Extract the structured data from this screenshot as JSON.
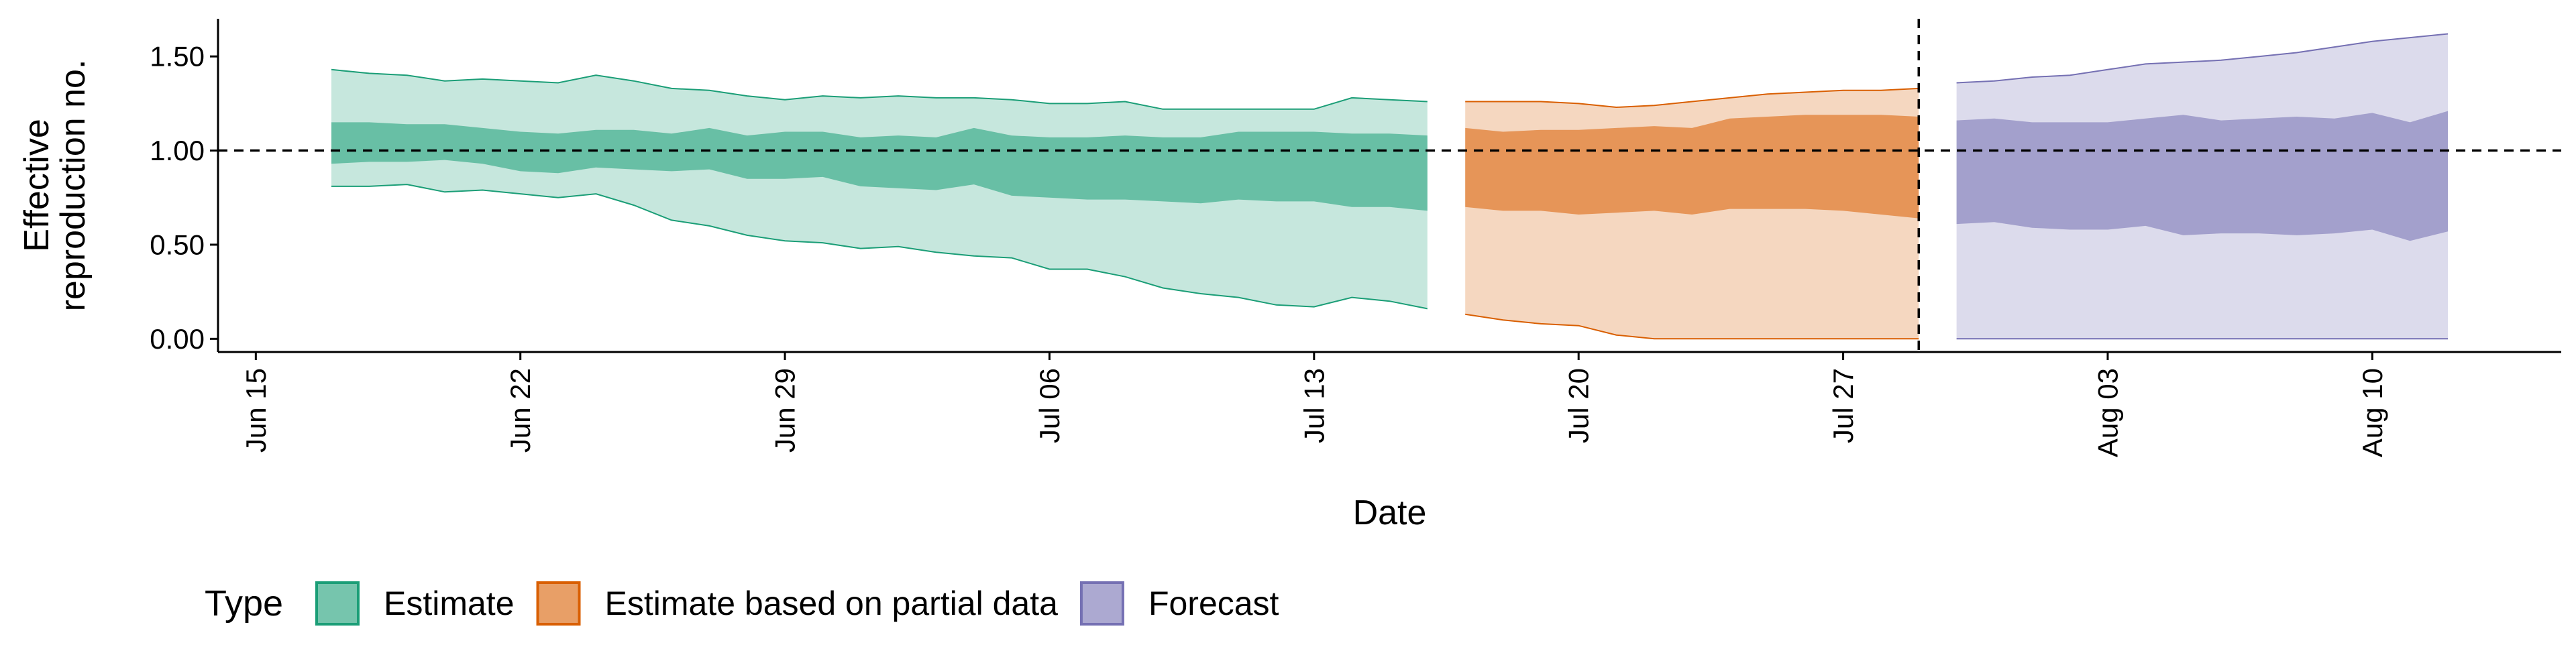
{
  "chart_data": {
    "type": "area",
    "xlabel": "Date",
    "ylabel_lines": [
      "Effective",
      "reproduction no."
    ],
    "x_ticks": [
      {
        "date": "2020-06-15",
        "label": "Jun 15"
      },
      {
        "date": "2020-06-22",
        "label": "Jun 22"
      },
      {
        "date": "2020-06-29",
        "label": "Jun 29"
      },
      {
        "date": "2020-07-06",
        "label": "Jul 06"
      },
      {
        "date": "2020-07-13",
        "label": "Jul 13"
      },
      {
        "date": "2020-07-20",
        "label": "Jul 20"
      },
      {
        "date": "2020-07-27",
        "label": "Jul 27"
      },
      {
        "date": "2020-08-03",
        "label": "Aug 03"
      },
      {
        "date": "2020-08-10",
        "label": "Aug 10"
      }
    ],
    "xlim": [
      "2020-06-14",
      "2020-08-15"
    ],
    "y_ticks": [
      {
        "value": 0.0,
        "label": "0.00"
      },
      {
        "value": 0.5,
        "label": "0.50"
      },
      {
        "value": 1.0,
        "label": "1.00"
      },
      {
        "value": 1.5,
        "label": "1.50"
      }
    ],
    "ylim": [
      -0.07,
      1.7
    ],
    "reference_line": {
      "y": 1.0,
      "style": "dashed"
    },
    "vertical_line": {
      "x": "2020-07-29",
      "style": "dashed"
    },
    "grid": false,
    "legend": {
      "title": "Type",
      "position": "bottom-left",
      "entries": [
        {
          "label": "Estimate",
          "color": "#1b9e77"
        },
        {
          "label": "Estimate based on partial data",
          "color": "#d95f02"
        },
        {
          "label": "Forecast",
          "color": "#7570b3"
        }
      ]
    },
    "series": [
      {
        "name": "Estimate",
        "color": "#1b9e77",
        "x": [
          "2020-06-17",
          "2020-06-18",
          "2020-06-19",
          "2020-06-20",
          "2020-06-21",
          "2020-06-22",
          "2020-06-23",
          "2020-06-24",
          "2020-06-25",
          "2020-06-26",
          "2020-06-27",
          "2020-06-28",
          "2020-06-29",
          "2020-06-30",
          "2020-07-01",
          "2020-07-02",
          "2020-07-03",
          "2020-07-04",
          "2020-07-05",
          "2020-07-06",
          "2020-07-07",
          "2020-07-08",
          "2020-07-09",
          "2020-07-10",
          "2020-07-11",
          "2020-07-12",
          "2020-07-13",
          "2020-07-14",
          "2020-07-15",
          "2020-07-16"
        ],
        "outer_lower": [
          0.81,
          0.81,
          0.82,
          0.78,
          0.79,
          0.77,
          0.75,
          0.77,
          0.71,
          0.63,
          0.6,
          0.55,
          0.52,
          0.51,
          0.48,
          0.49,
          0.46,
          0.44,
          0.43,
          0.37,
          0.37,
          0.33,
          0.27,
          0.24,
          0.22,
          0.18,
          0.17,
          0.22,
          0.2,
          0.16
        ],
        "inner_lower": [
          0.93,
          0.94,
          0.94,
          0.95,
          0.93,
          0.89,
          0.88,
          0.91,
          0.9,
          0.89,
          0.9,
          0.85,
          0.85,
          0.86,
          0.81,
          0.8,
          0.79,
          0.82,
          0.76,
          0.75,
          0.74,
          0.74,
          0.73,
          0.72,
          0.74,
          0.73,
          0.73,
          0.7,
          0.7,
          0.68
        ],
        "inner_upper": [
          1.15,
          1.15,
          1.14,
          1.14,
          1.12,
          1.1,
          1.09,
          1.11,
          1.11,
          1.09,
          1.12,
          1.08,
          1.1,
          1.1,
          1.07,
          1.08,
          1.07,
          1.12,
          1.08,
          1.07,
          1.07,
          1.08,
          1.07,
          1.07,
          1.1,
          1.1,
          1.1,
          1.09,
          1.09,
          1.08
        ],
        "outer_upper": [
          1.43,
          1.41,
          1.4,
          1.37,
          1.38,
          1.37,
          1.36,
          1.4,
          1.37,
          1.33,
          1.32,
          1.29,
          1.27,
          1.29,
          1.28,
          1.29,
          1.28,
          1.28,
          1.27,
          1.25,
          1.25,
          1.26,
          1.22,
          1.22,
          1.22,
          1.22,
          1.22,
          1.28,
          1.27,
          1.26
        ]
      },
      {
        "name": "Estimate based on partial data",
        "color": "#d95f02",
        "x": [
          "2020-07-17",
          "2020-07-18",
          "2020-07-19",
          "2020-07-20",
          "2020-07-21",
          "2020-07-22",
          "2020-07-23",
          "2020-07-24",
          "2020-07-25",
          "2020-07-26",
          "2020-07-27",
          "2020-07-28",
          "2020-07-29"
        ],
        "outer_lower": [
          0.13,
          0.1,
          0.08,
          0.07,
          0.02,
          0.0,
          0.0,
          0.0,
          0.0,
          0.0,
          0.0,
          0.0,
          0.0
        ],
        "inner_lower": [
          0.7,
          0.68,
          0.68,
          0.66,
          0.67,
          0.68,
          0.66,
          0.69,
          0.69,
          0.69,
          0.68,
          0.66,
          0.64
        ],
        "inner_upper": [
          1.12,
          1.1,
          1.11,
          1.11,
          1.12,
          1.13,
          1.12,
          1.17,
          1.18,
          1.19,
          1.19,
          1.19,
          1.18
        ],
        "outer_upper": [
          1.26,
          1.26,
          1.26,
          1.25,
          1.23,
          1.24,
          1.26,
          1.28,
          1.3,
          1.31,
          1.32,
          1.32,
          1.33
        ]
      },
      {
        "name": "Forecast",
        "color": "#7570b3",
        "x": [
          "2020-07-30",
          "2020-07-31",
          "2020-08-01",
          "2020-08-02",
          "2020-08-03",
          "2020-08-04",
          "2020-08-05",
          "2020-08-06",
          "2020-08-07",
          "2020-08-08",
          "2020-08-09",
          "2020-08-10",
          "2020-08-11",
          "2020-08-12"
        ],
        "outer_lower": [
          0.0,
          0.0,
          0.0,
          0.0,
          0.0,
          0.0,
          0.0,
          0.0,
          0.0,
          0.0,
          0.0,
          0.0,
          0.0,
          0.0
        ],
        "inner_lower": [
          0.61,
          0.62,
          0.59,
          0.58,
          0.58,
          0.6,
          0.55,
          0.56,
          0.56,
          0.55,
          0.56,
          0.58,
          0.52,
          0.57
        ],
        "inner_upper": [
          1.16,
          1.17,
          1.15,
          1.15,
          1.15,
          1.17,
          1.19,
          1.16,
          1.17,
          1.18,
          1.17,
          1.2,
          1.15,
          1.21
        ],
        "outer_upper": [
          1.36,
          1.37,
          1.39,
          1.4,
          1.43,
          1.46,
          1.47,
          1.48,
          1.5,
          1.52,
          1.55,
          1.58,
          1.6,
          1.62
        ]
      }
    ]
  }
}
